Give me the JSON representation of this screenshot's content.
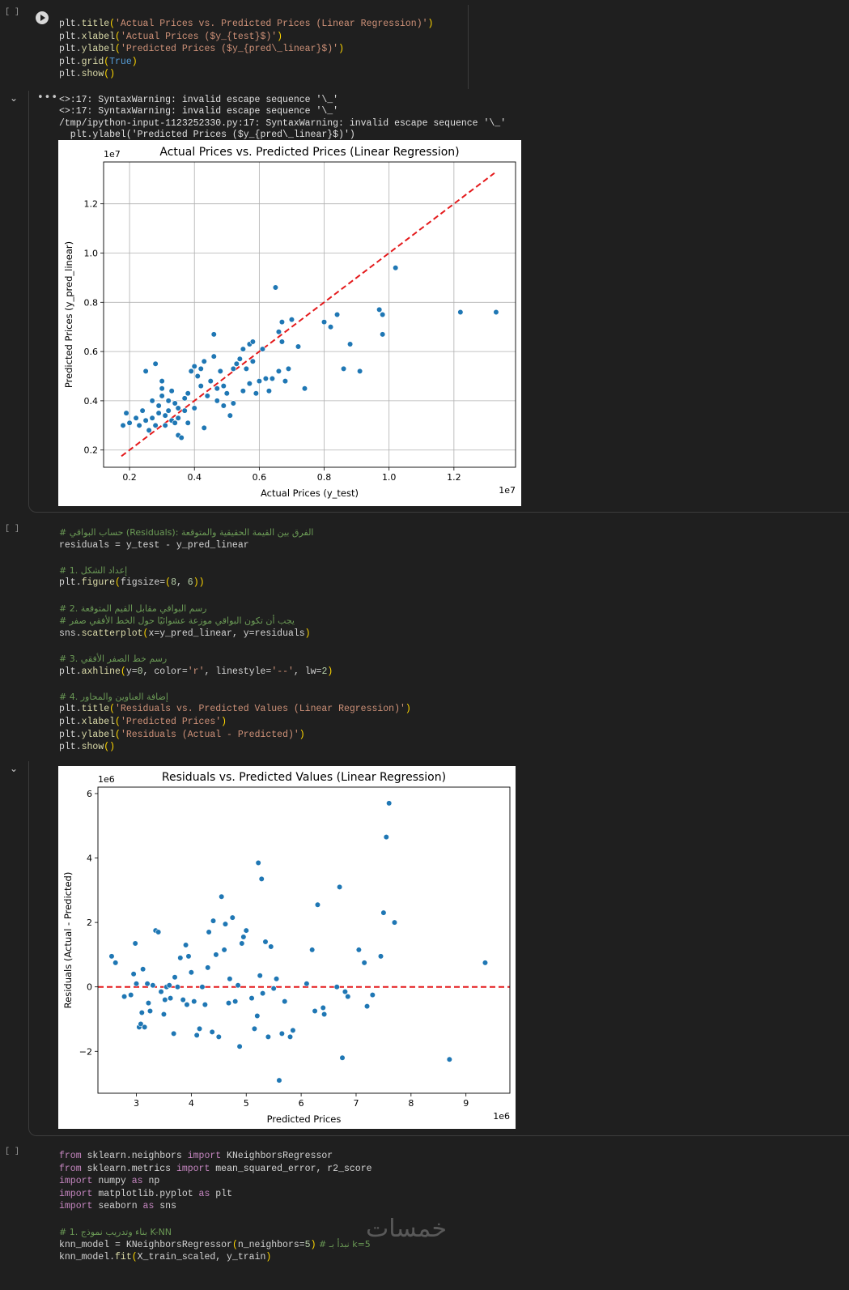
{
  "cells": [
    {
      "exec_count": "[ ]"
    },
    {
      "exec_count": "[ ]"
    },
    {
      "exec_count": "[ ]"
    }
  ],
  "cell1_lines": [
    [
      {
        "t": "plt.",
        "c": ""
      },
      {
        "t": "title",
        "c": "fn"
      },
      {
        "t": "(",
        "c": "pun"
      },
      {
        "t": "'Actual Prices vs. Predicted Prices (Linear Regression)'",
        "c": "str"
      },
      {
        "t": ")",
        "c": "pun"
      }
    ],
    [
      {
        "t": "plt.",
        "c": ""
      },
      {
        "t": "xlabel",
        "c": "fn"
      },
      {
        "t": "(",
        "c": "pun"
      },
      {
        "t": "'Actual Prices ($y_{test}$)'",
        "c": "str"
      },
      {
        "t": ")",
        "c": "pun"
      }
    ],
    [
      {
        "t": "plt.",
        "c": ""
      },
      {
        "t": "ylabel",
        "c": "fn"
      },
      {
        "t": "(",
        "c": "pun"
      },
      {
        "t": "'Predicted Prices ($y_{pred\\_linear}$)'",
        "c": "str"
      },
      {
        "t": ")",
        "c": "pun"
      }
    ],
    [
      {
        "t": "plt.",
        "c": ""
      },
      {
        "t": "grid",
        "c": "fn"
      },
      {
        "t": "(",
        "c": "pun"
      },
      {
        "t": "True",
        "c": "bool"
      },
      {
        "t": ")",
        "c": "pun"
      }
    ],
    [
      {
        "t": "plt.",
        "c": ""
      },
      {
        "t": "show",
        "c": "fn"
      },
      {
        "t": "()",
        "c": "pun"
      }
    ]
  ],
  "warnings": [
    "<>:17: SyntaxWarning: invalid escape sequence '\\_'",
    "<>:17: SyntaxWarning: invalid escape sequence '\\_'",
    "/tmp/ipython-input-1123252330.py:17: SyntaxWarning: invalid escape sequence '\\_'",
    "  plt.ylabel('Predicted Prices ($y_{pred\\_linear}$)')"
  ],
  "cell2_lines": [
    [
      {
        "t": "# حساب البواقي (Residuals): الفرق بين القيمة الحقيقية والمتوقعة",
        "c": "cm"
      }
    ],
    [
      {
        "t": "residuals = y_test - y_pred_linear",
        "c": ""
      }
    ],
    [
      {
        "t": "",
        "c": ""
      }
    ],
    [
      {
        "t": "# 1. إعداد الشكل",
        "c": "cm"
      }
    ],
    [
      {
        "t": "plt.",
        "c": ""
      },
      {
        "t": "figure",
        "c": "fn"
      },
      {
        "t": "(",
        "c": "pun"
      },
      {
        "t": "figsize=",
        "c": ""
      },
      {
        "t": "(",
        "c": "pun"
      },
      {
        "t": "8",
        "c": "num"
      },
      {
        "t": ", ",
        "c": ""
      },
      {
        "t": "6",
        "c": "num"
      },
      {
        "t": "))",
        "c": "pun"
      }
    ],
    [
      {
        "t": "",
        "c": ""
      }
    ],
    [
      {
        "t": "# 2. رسم البواقي مقابل القيم المتوقعة",
        "c": "cm"
      }
    ],
    [
      {
        "t": "# يجب أن تكون البواقي موزعة عشوائيًا حول الخط الأفقي صفر",
        "c": "cm"
      }
    ],
    [
      {
        "t": "sns.",
        "c": ""
      },
      {
        "t": "scatterplot",
        "c": "fn"
      },
      {
        "t": "(",
        "c": "pun"
      },
      {
        "t": "x=y_pred_linear, y=residuals",
        "c": ""
      },
      {
        "t": ")",
        "c": "pun"
      }
    ],
    [
      {
        "t": "",
        "c": ""
      }
    ],
    [
      {
        "t": "# 3. رسم خط الصفر الأفقي",
        "c": "cm"
      }
    ],
    [
      {
        "t": "plt.",
        "c": ""
      },
      {
        "t": "axhline",
        "c": "fn"
      },
      {
        "t": "(",
        "c": "pun"
      },
      {
        "t": "y=",
        "c": ""
      },
      {
        "t": "0",
        "c": "num"
      },
      {
        "t": ", color=",
        "c": ""
      },
      {
        "t": "'r'",
        "c": "str"
      },
      {
        "t": ", linestyle=",
        "c": ""
      },
      {
        "t": "'--'",
        "c": "str"
      },
      {
        "t": ", lw=",
        "c": ""
      },
      {
        "t": "2",
        "c": "num"
      },
      {
        "t": ")",
        "c": "pun"
      }
    ],
    [
      {
        "t": "",
        "c": ""
      }
    ],
    [
      {
        "t": "# 4. إضافة العناوين والمحاور",
        "c": "cm"
      }
    ],
    [
      {
        "t": "plt.",
        "c": ""
      },
      {
        "t": "title",
        "c": "fn"
      },
      {
        "t": "(",
        "c": "pun"
      },
      {
        "t": "'Residuals vs. Predicted Values (Linear Regression)'",
        "c": "str"
      },
      {
        "t": ")",
        "c": "pun"
      }
    ],
    [
      {
        "t": "plt.",
        "c": ""
      },
      {
        "t": "xlabel",
        "c": "fn"
      },
      {
        "t": "(",
        "c": "pun"
      },
      {
        "t": "'Predicted Prices'",
        "c": "str"
      },
      {
        "t": ")",
        "c": "pun"
      }
    ],
    [
      {
        "t": "plt.",
        "c": ""
      },
      {
        "t": "ylabel",
        "c": "fn"
      },
      {
        "t": "(",
        "c": "pun"
      },
      {
        "t": "'Residuals (Actual - Predicted)'",
        "c": "str"
      },
      {
        "t": ")",
        "c": "pun"
      }
    ],
    [
      {
        "t": "plt.",
        "c": ""
      },
      {
        "t": "show",
        "c": "fn"
      },
      {
        "t": "()",
        "c": "pun"
      }
    ]
  ],
  "cell3_lines": [
    [
      {
        "t": "from",
        "c": "kw"
      },
      {
        "t": " sklearn.neighbors ",
        "c": ""
      },
      {
        "t": "import",
        "c": "kw"
      },
      {
        "t": " KNeighborsRegressor",
        "c": ""
      }
    ],
    [
      {
        "t": "from",
        "c": "kw"
      },
      {
        "t": " sklearn.metrics ",
        "c": ""
      },
      {
        "t": "import",
        "c": "kw"
      },
      {
        "t": " mean_squared_error, r2_score",
        "c": ""
      }
    ],
    [
      {
        "t": "import",
        "c": "kw"
      },
      {
        "t": " numpy ",
        "c": ""
      },
      {
        "t": "as",
        "c": "kw"
      },
      {
        "t": " np",
        "c": ""
      }
    ],
    [
      {
        "t": "import",
        "c": "kw"
      },
      {
        "t": " matplotlib.pyplot ",
        "c": ""
      },
      {
        "t": "as",
        "c": "kw"
      },
      {
        "t": " plt",
        "c": ""
      }
    ],
    [
      {
        "t": "import",
        "c": "kw"
      },
      {
        "t": " seaborn ",
        "c": ""
      },
      {
        "t": "as",
        "c": "kw"
      },
      {
        "t": " sns",
        "c": ""
      }
    ],
    [
      {
        "t": "",
        "c": ""
      }
    ],
    [
      {
        "t": "# 1. بناء وتدريب نموذج K-NN",
        "c": "cm"
      }
    ],
    [
      {
        "t": "knn_model = KNeighborsRegressor",
        "c": ""
      },
      {
        "t": "(",
        "c": "pun"
      },
      {
        "t": "n_neighbors=",
        "c": ""
      },
      {
        "t": "5",
        "c": "num"
      },
      {
        "t": ")",
        "c": "pun"
      },
      {
        "t": " # نبدأ بـ k=5",
        "c": "cm"
      }
    ],
    [
      {
        "t": "knn_model.",
        "c": ""
      },
      {
        "t": "fit",
        "c": "fn"
      },
      {
        "t": "(",
        "c": "pun"
      },
      {
        "t": "X_train_scaled, y_train",
        "c": ""
      },
      {
        "t": ")",
        "c": "pun"
      }
    ]
  ],
  "watermark": "خمسات",
  "chart_data": [
    {
      "type": "scatter",
      "title": "Actual Prices vs. Predicted Prices (Linear Regression)",
      "xlabel": "Actual Prices (y_test)",
      "ylabel": "Predicted Prices (y_pred_linear)",
      "x_offset_label": "1e7",
      "y_offset_label": "1e7",
      "xlim": [
        0.12,
        1.39
      ],
      "ylim": [
        0.13,
        1.37
      ],
      "xticks": [
        "0.2",
        "0.4",
        "0.6",
        "0.8",
        "1.0",
        "1.2"
      ],
      "yticks": [
        "0.2",
        "0.4",
        "0.6",
        "0.8",
        "1.0",
        "1.2"
      ],
      "grid": true,
      "reference_line": {
        "from": [
          0.175,
          0.175
        ],
        "to": [
          1.325,
          1.325
        ],
        "color": "#e41a1c",
        "style": "dashed"
      },
      "point_color": "#1f77b4",
      "x": [
        0.18,
        0.19,
        0.2,
        0.22,
        0.23,
        0.24,
        0.25,
        0.25,
        0.26,
        0.27,
        0.27,
        0.28,
        0.28,
        0.29,
        0.29,
        0.3,
        0.3,
        0.3,
        0.31,
        0.31,
        0.32,
        0.32,
        0.33,
        0.33,
        0.34,
        0.34,
        0.35,
        0.35,
        0.35,
        0.36,
        0.37,
        0.37,
        0.38,
        0.38,
        0.39,
        0.4,
        0.4,
        0.41,
        0.42,
        0.42,
        0.43,
        0.43,
        0.44,
        0.45,
        0.46,
        0.46,
        0.47,
        0.47,
        0.48,
        0.49,
        0.49,
        0.5,
        0.51,
        0.52,
        0.52,
        0.53,
        0.54,
        0.55,
        0.55,
        0.56,
        0.57,
        0.57,
        0.58,
        0.58,
        0.59,
        0.6,
        0.61,
        0.62,
        0.63,
        0.64,
        0.65,
        0.66,
        0.66,
        0.67,
        0.67,
        0.68,
        0.69,
        0.7,
        0.72,
        0.74,
        0.8,
        0.82,
        0.84,
        0.86,
        0.88,
        0.91,
        0.97,
        0.98,
        0.98,
        1.02,
        1.22,
        1.33
      ],
      "y": [
        0.3,
        0.35,
        0.31,
        0.33,
        0.3,
        0.36,
        0.52,
        0.32,
        0.28,
        0.4,
        0.33,
        0.55,
        0.3,
        0.35,
        0.38,
        0.42,
        0.45,
        0.48,
        0.3,
        0.34,
        0.4,
        0.36,
        0.32,
        0.44,
        0.31,
        0.39,
        0.26,
        0.33,
        0.37,
        0.25,
        0.41,
        0.36,
        0.31,
        0.43,
        0.52,
        0.54,
        0.37,
        0.5,
        0.46,
        0.53,
        0.29,
        0.56,
        0.42,
        0.48,
        0.58,
        0.67,
        0.4,
        0.45,
        0.52,
        0.38,
        0.46,
        0.43,
        0.34,
        0.39,
        0.53,
        0.55,
        0.57,
        0.44,
        0.61,
        0.53,
        0.63,
        0.47,
        0.64,
        0.56,
        0.43,
        0.48,
        0.61,
        0.49,
        0.44,
        0.49,
        0.86,
        0.52,
        0.68,
        0.72,
        0.64,
        0.48,
        0.53,
        0.73,
        0.62,
        0.45,
        0.72,
        0.7,
        0.75,
        0.53,
        0.63,
        0.52,
        0.77,
        0.67,
        0.75,
        0.94,
        0.76,
        0.76
      ]
    },
    {
      "type": "scatter",
      "title": "Residuals vs. Predicted Values (Linear Regression)",
      "xlabel": "Predicted Prices",
      "ylabel": "Residuals (Actual - Predicted)",
      "x_offset_label": "1e6",
      "y_offset_label": "1e6",
      "xlim": [
        2.3,
        9.8
      ],
      "ylim": [
        -3.3,
        6.2
      ],
      "xticks": [
        "3",
        "4",
        "5",
        "6",
        "7",
        "8",
        "9"
      ],
      "yticks": [
        "−2",
        "0",
        "2",
        "4",
        "6"
      ],
      "grid": false,
      "reference_line": {
        "y": 0,
        "color": "#e41a1c",
        "style": "dashed"
      },
      "point_color": "#1f77b4",
      "x": [
        2.55,
        2.62,
        2.78,
        2.9,
        2.95,
        2.98,
        3.0,
        3.05,
        3.08,
        3.1,
        3.12,
        3.15,
        3.2,
        3.22,
        3.25,
        3.3,
        3.35,
        3.4,
        3.45,
        3.5,
        3.52,
        3.55,
        3.6,
        3.62,
        3.68,
        3.7,
        3.75,
        3.8,
        3.85,
        3.9,
        3.92,
        3.95,
        4.0,
        4.05,
        4.1,
        4.15,
        4.2,
        4.25,
        4.3,
        4.32,
        4.38,
        4.4,
        4.45,
        4.5,
        4.55,
        4.6,
        4.62,
        4.68,
        4.7,
        4.75,
        4.8,
        4.85,
        4.88,
        4.92,
        4.95,
        5.0,
        5.1,
        5.15,
        5.2,
        5.22,
        5.25,
        5.28,
        5.3,
        5.35,
        5.4,
        5.45,
        5.5,
        5.55,
        5.6,
        5.65,
        5.7,
        5.8,
        5.85,
        6.1,
        6.2,
        6.25,
        6.3,
        6.4,
        6.42,
        6.65,
        6.7,
        6.75,
        6.8,
        6.85,
        7.05,
        7.15,
        7.2,
        7.3,
        7.45,
        7.5,
        7.55,
        7.6,
        7.7,
        8.7,
        9.35
      ],
      "y": [
        0.95,
        0.75,
        -0.3,
        -0.25,
        0.4,
        1.35,
        0.1,
        -1.25,
        -1.15,
        -0.8,
        0.55,
        -1.25,
        0.1,
        -0.5,
        -0.75,
        0.05,
        1.75,
        1.7,
        -0.15,
        -0.85,
        -0.4,
        0.0,
        0.05,
        -0.35,
        -1.45,
        0.3,
        0.0,
        0.9,
        -0.4,
        1.3,
        -0.55,
        0.95,
        0.45,
        -0.45,
        -1.5,
        -1.3,
        0.0,
        -0.55,
        0.6,
        1.7,
        -1.4,
        2.05,
        1.0,
        -1.55,
        2.8,
        1.15,
        1.95,
        -0.5,
        0.25,
        2.15,
        -0.45,
        0.05,
        -1.85,
        1.35,
        1.55,
        1.75,
        -0.35,
        -1.3,
        -0.9,
        3.85,
        0.35,
        3.35,
        -0.2,
        1.4,
        -1.55,
        1.25,
        -0.05,
        0.25,
        -2.9,
        -1.45,
        -0.45,
        -1.55,
        -1.35,
        0.1,
        1.15,
        -0.75,
        2.55,
        -0.65,
        -0.85,
        0.0,
        3.1,
        -2.2,
        -0.15,
        -0.3,
        1.15,
        0.75,
        -0.6,
        -0.25,
        0.95,
        2.3,
        4.65,
        5.7,
        2.0,
        -2.25,
        0.75
      ]
    }
  ]
}
